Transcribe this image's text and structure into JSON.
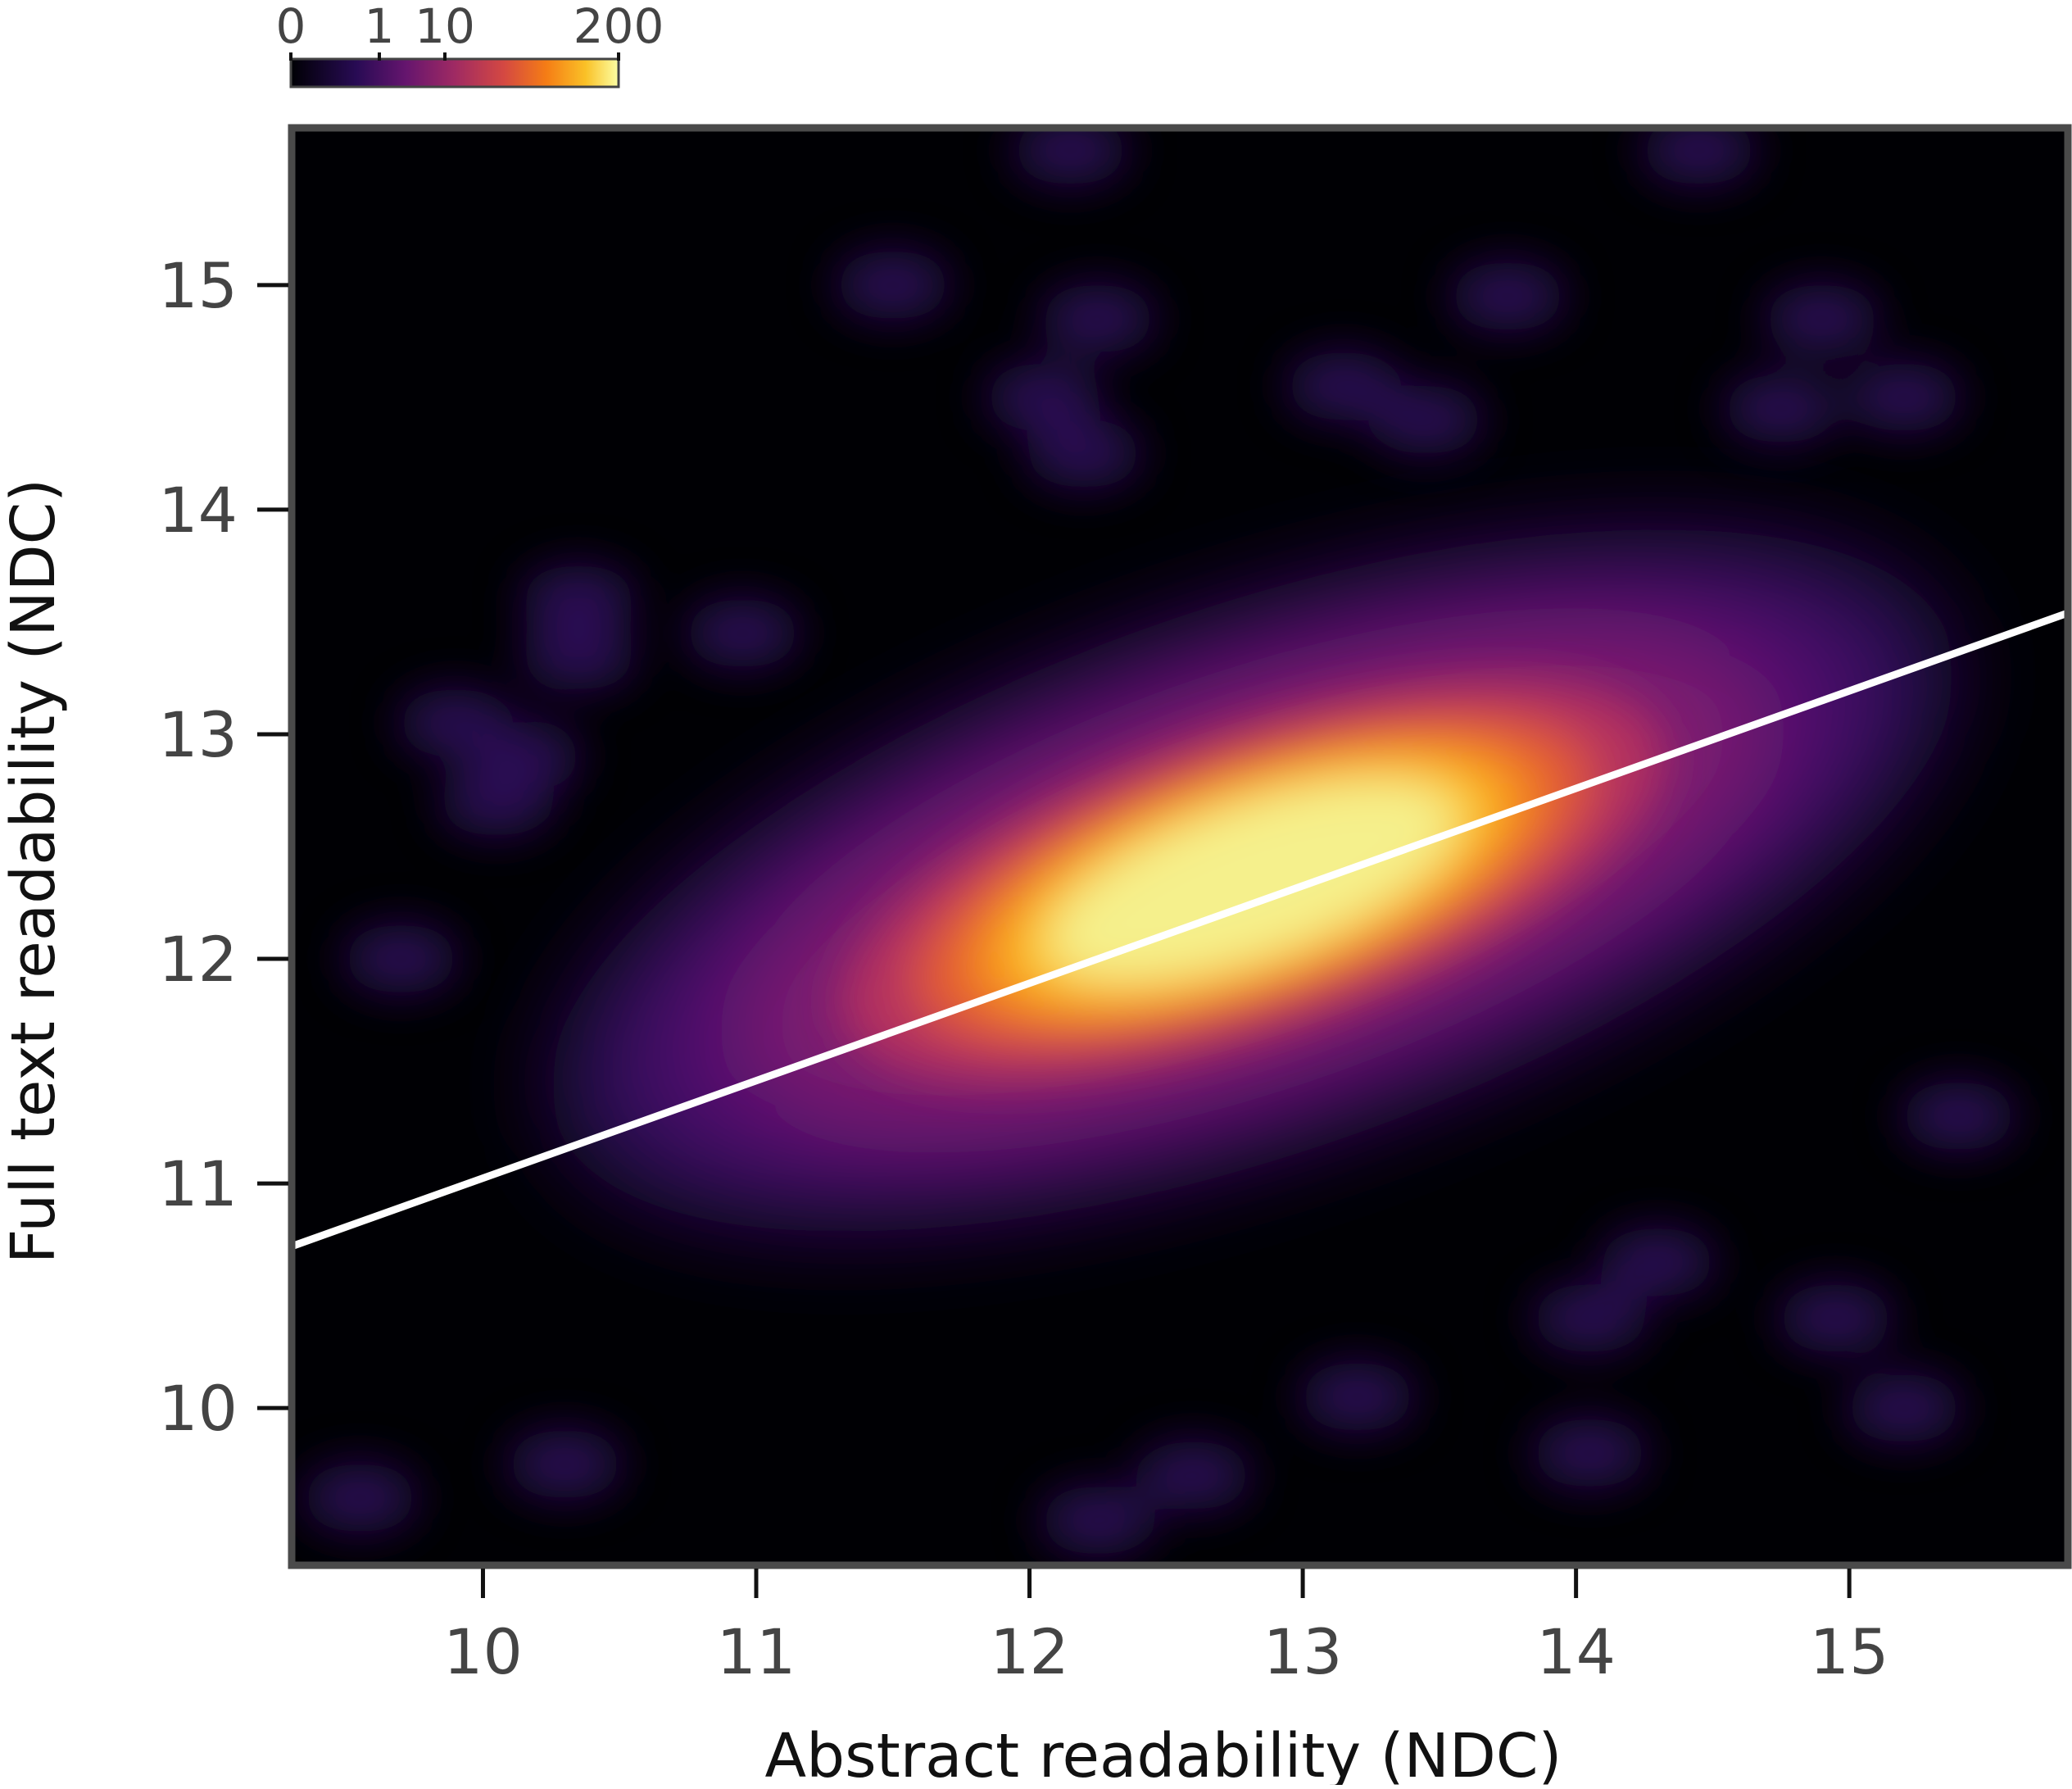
{
  "chart_data": {
    "type": "heatmap",
    "title": "",
    "xlabel": "Abstract readability (NDC)",
    "ylabel": "Full text readability (NDC)",
    "xlim": [
      9.3,
      15.8
    ],
    "ylim": [
      9.3,
      15.7
    ],
    "x_ticks": [
      10,
      11,
      12,
      13,
      14,
      15
    ],
    "y_ticks": [
      10,
      11,
      12,
      13,
      14,
      15
    ],
    "colormap": "inferno",
    "colorbar": {
      "placement": "top-left",
      "ticks": [
        "0",
        "1",
        "10",
        "200"
      ],
      "tick_values": [
        0,
        1,
        10,
        200
      ],
      "scale": "symlog"
    },
    "density_peak": {
      "x": 12.9,
      "y": 12.5,
      "value": 200
    },
    "regression_line": {
      "color": "#ffffff",
      "points": [
        [
          9.3,
          10.72
        ],
        [
          15.8,
          13.54
        ]
      ]
    },
    "grid": false
  }
}
